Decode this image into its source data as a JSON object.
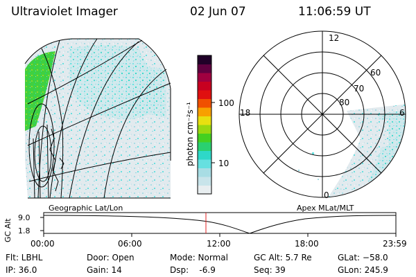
{
  "header": {
    "instrument": "Ultraviolet Imager",
    "date": "02 Jun 07",
    "time": "11:06:59 UT"
  },
  "colorbar": {
    "unit_label": "photon cm⁻²s⁻¹",
    "ticks": [
      "100",
      "10"
    ],
    "scale": "log",
    "colors": [
      "#e8eef0",
      "#c8e4ea",
      "#a8dde4",
      "#66e0e0",
      "#2ed8c8",
      "#2ad070",
      "#44d020",
      "#9ad810",
      "#e8e010",
      "#f8a000",
      "#f05000",
      "#e01010",
      "#c80020",
      "#a00040",
      "#600040",
      "#200028"
    ]
  },
  "geo_panel": {
    "label": "Geographic Lat/Lon"
  },
  "polar_panel": {
    "label": "Apex MLat/MLT",
    "mlt_labels": {
      "top": "12",
      "left": "18",
      "right": "6",
      "bottom": "0"
    },
    "mlat_labels": [
      "60",
      "70",
      "80"
    ]
  },
  "altitude_strip": {
    "ylabel": "GC Alt",
    "y_ticks": [
      "9.0",
      "1.8"
    ],
    "x_ticks": [
      "00:00",
      "06:00",
      "12:00",
      "18:00",
      "23:59"
    ],
    "current_time_marker_color": "#e02020"
  },
  "footer": {
    "filter": "Flt: LBHL",
    "ip": "IP: 36.0",
    "door": "Door: Open",
    "gain": "Gain: 14",
    "mode": "Mode: Normal",
    "dsp": "Dsp:    -6.9",
    "gc_alt": "GC Alt: 5.7 Re",
    "seq": "Seq: 39",
    "glat": "GLat: −58.0",
    "glon": "GLon: 245.9"
  }
}
